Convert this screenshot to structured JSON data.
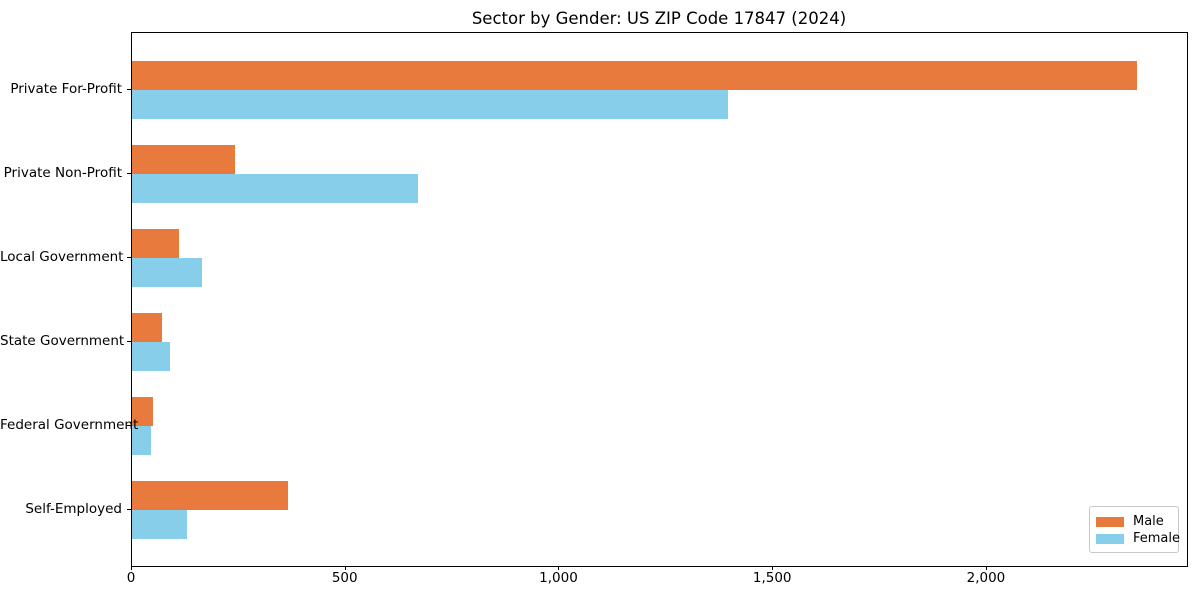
{
  "figure": {
    "background": "#ffffff",
    "text_color": "#000000"
  },
  "chart_data": {
    "type": "bar",
    "orientation": "horizontal",
    "title": "Sector by Gender: US ZIP Code 17847 (2024)",
    "xlabel": "",
    "ylabel": "",
    "categories": [
      "Private For-Profit",
      "Private Non-Profit",
      "Local Government",
      "State Government",
      "Federal Government",
      "Self-Employed"
    ],
    "series": [
      {
        "name": "Male",
        "color": "#e87a3d",
        "values": [
          2350,
          240,
          110,
          70,
          50,
          365
        ]
      },
      {
        "name": "Female",
        "color": "#87ceeb",
        "values": [
          1395,
          668,
          164,
          90,
          45,
          128
        ]
      }
    ],
    "xlim": [
      0,
      2468
    ],
    "xticks": [
      0,
      500,
      1000,
      1500,
      2000
    ],
    "xtick_labels": [
      "0",
      "500",
      "1,000",
      "1,500",
      "2,000"
    ],
    "grid": false,
    "legend": {
      "position": "lower right"
    }
  }
}
